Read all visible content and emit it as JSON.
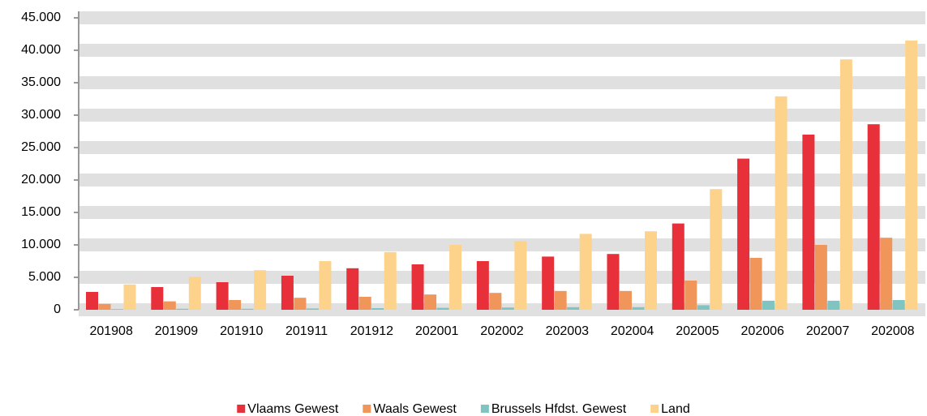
{
  "chart_data": {
    "type": "bar",
    "categories": [
      "201908",
      "201909",
      "201910",
      "201911",
      "201912",
      "202001",
      "202002",
      "202003",
      "202004",
      "202005",
      "202006",
      "202007",
      "202008"
    ],
    "series": [
      {
        "name": "Vlaams Gewest",
        "color": "#e8303a",
        "values": [
          2750,
          3500,
          4250,
          5250,
          6400,
          7000,
          7500,
          8200,
          8600,
          13300,
          23300,
          27000,
          28600
        ]
      },
      {
        "name": "Waals Gewest",
        "color": "#f0965a",
        "values": [
          900,
          1300,
          1500,
          1850,
          2000,
          2350,
          2600,
          2900,
          2900,
          4500,
          8000,
          10000,
          11100
        ]
      },
      {
        "name": "Brussels Hfdst. Gewest",
        "color": "#7fc4c0",
        "values": [
          100,
          150,
          150,
          200,
          250,
          300,
          350,
          400,
          400,
          700,
          1400,
          1400,
          1500
        ]
      },
      {
        "name": "Land",
        "color": "#fdd38c",
        "values": [
          3900,
          5100,
          6100,
          7500,
          8900,
          10000,
          10600,
          11700,
          12100,
          18600,
          32900,
          38600,
          41500
        ]
      }
    ],
    "ylim": [
      0,
      45000
    ],
    "yticks": [
      0,
      {
        "value": 5000,
        "label": "5.000"
      },
      {
        "value": 10000,
        "label": "10.000"
      },
      {
        "value": 15000,
        "label": "15.000"
      },
      {
        "value": 20000,
        "label": "20.000"
      },
      {
        "value": 25000,
        "label": "25.000"
      },
      {
        "value": 30000,
        "label": "30.000"
      },
      {
        "value": 35000,
        "label": "35.000"
      },
      {
        "value": 40000,
        "label": "40.000"
      },
      {
        "value": 45000,
        "label": "45.000"
      }
    ],
    "grid": true,
    "legend": "bottom"
  }
}
